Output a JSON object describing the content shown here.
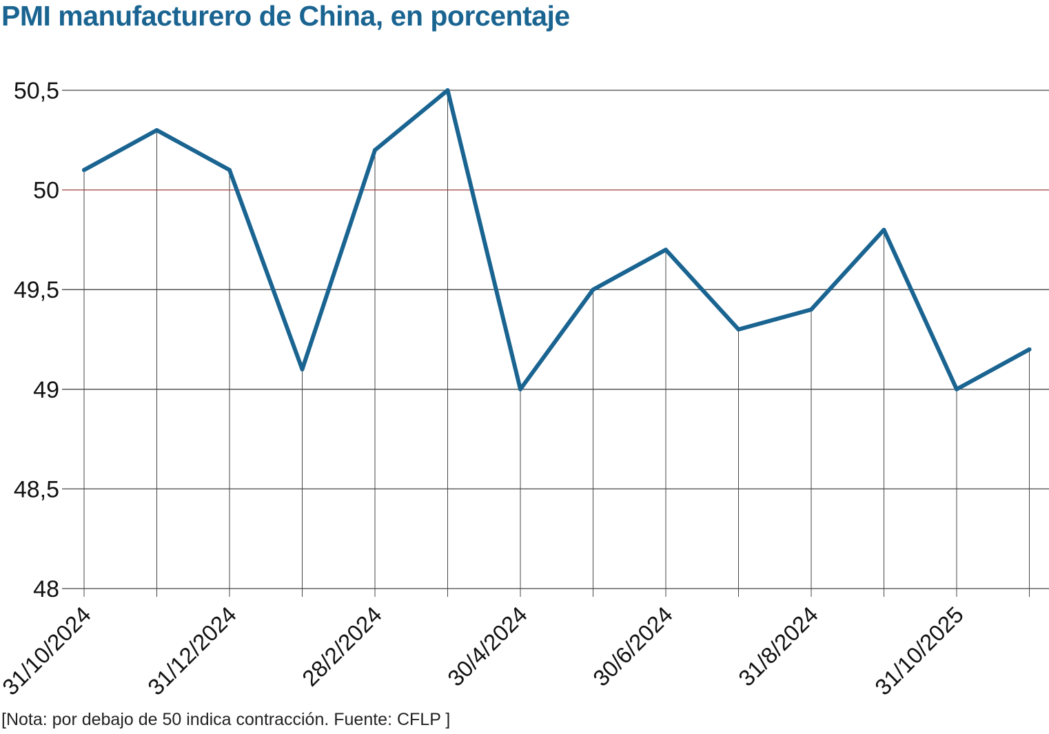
{
  "title": "PMI manufacturero de China, en porcentaje",
  "note": "[Nota: por debajo de 50 indica contracción. Fuente: CFLP ]",
  "colors": {
    "line": "#1a6491",
    "reference": "#a04040",
    "grid": "#444444",
    "title": "#1a6491"
  },
  "chart_data": {
    "type": "line",
    "title": "PMI manufacturero de China, en porcentaje",
    "xlabel": "",
    "ylabel": "",
    "ylim": [
      48,
      50.5
    ],
    "y_ticks": [
      "48",
      "48,5",
      "49",
      "49,5",
      "50",
      "50,5"
    ],
    "y_tick_values": [
      48,
      48.5,
      49,
      49.5,
      50,
      50.5
    ],
    "x_tick_labels": [
      "31/10/2024",
      "",
      "31/12/2024",
      "",
      "28/2/2024",
      "",
      "30/4/2024",
      "",
      "30/6/2024",
      "",
      "31/8/2024",
      "",
      "31/10/2025",
      ""
    ],
    "reference_line": 50,
    "grid": true,
    "series": [
      {
        "values": [
          50.1,
          50.3,
          50.1,
          49.1,
          50.2,
          50.5,
          49.0,
          49.5,
          49.7,
          49.3,
          49.4,
          49.8,
          49.0,
          49.2
        ]
      }
    ]
  }
}
